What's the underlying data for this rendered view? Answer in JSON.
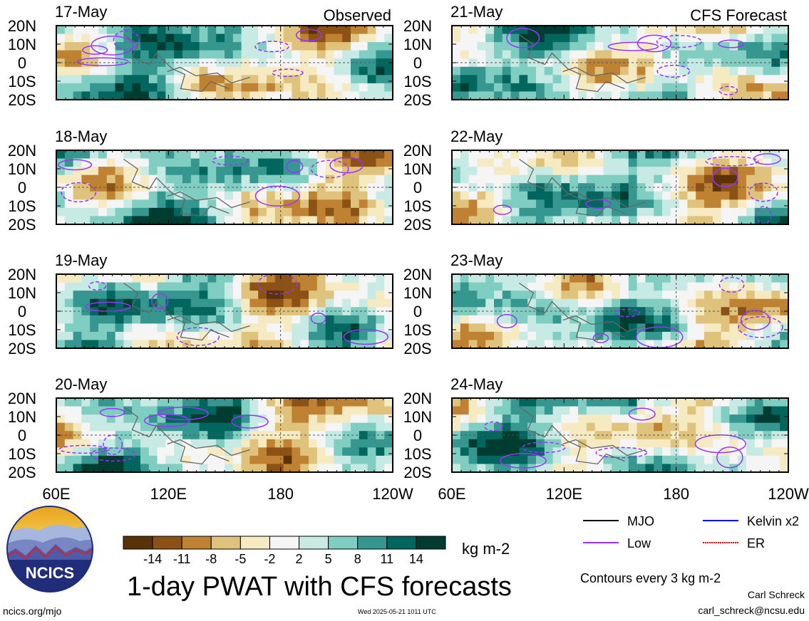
{
  "chart_data": {
    "type": "heatmap",
    "title": "1-day PWAT with CFS forecasts",
    "units": "kg m-2",
    "contour_note": "Contours every 3 kg m-2",
    "x_ticks": [
      "60E",
      "120E",
      "180",
      "120W"
    ],
    "y_ticks": [
      "20N",
      "10N",
      "0",
      "10S",
      "20S"
    ],
    "columns": [
      {
        "label": "Observed",
        "panels": [
          "17-May",
          "18-May",
          "19-May",
          "20-May"
        ]
      },
      {
        "label": "CFS Forecast",
        "panels": [
          "21-May",
          "22-May",
          "23-May",
          "24-May"
        ]
      }
    ],
    "colorbar": {
      "levels": [
        "-14",
        "-11",
        "-8",
        "-5",
        "-2",
        "2",
        "5",
        "8",
        "11",
        "14"
      ],
      "colors": [
        "#5a3208",
        "#8c5215",
        "#bf8232",
        "#dfc37d",
        "#f6eac2",
        "#f5f5f5",
        "#c7eae4",
        "#80cdc1",
        "#35978f",
        "#01665e",
        "#003c30"
      ]
    },
    "legend": [
      {
        "name": "MJO",
        "color": "#000000"
      },
      {
        "name": "Kelvin x2",
        "color": "#0000ff"
      },
      {
        "name": "Low",
        "color": "#9933ff"
      },
      {
        "name": "ER",
        "color": "#ff0000"
      }
    ]
  },
  "footer": {
    "url": "ncics.org/mjo",
    "timestamp": "Wed 2025-05-21 1011 UTC",
    "author": "Carl Schreck",
    "email": "carl_schreck@ncsu.edu"
  },
  "logo": {
    "text": "NCICS"
  }
}
